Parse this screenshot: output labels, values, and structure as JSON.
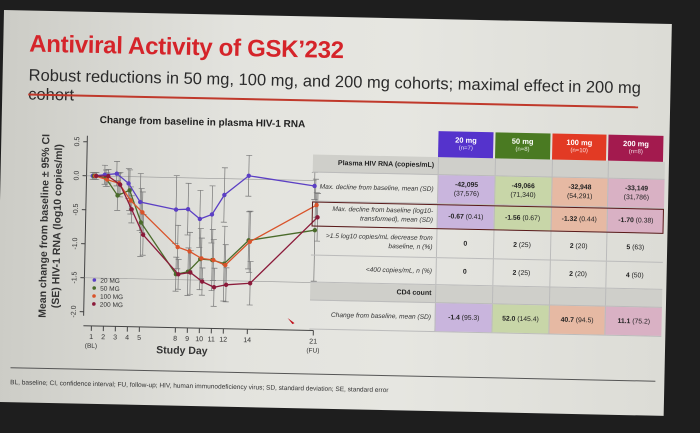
{
  "slide": {
    "title": "Antiviral Activity of GSK’232",
    "subtitle": "Robust reductions in 50 mg, 100 mg, and 200 mg cohorts; maximal effect in 200 mg cohort",
    "footnote": "BL, baseline; CI, confidence interval; FU, follow-up; HIV, human immunodeficiency virus; SD, standard deviation; SE, standard error"
  },
  "chart_data": {
    "type": "line",
    "title": "Change from baseline in plasma HIV-1 RNA",
    "xlabel": "Study Day",
    "ylabel": "Mean change from baseline ± 95% CI (SE) HIV-1 RNA (log10 copies/ml)",
    "ylabel_line1": "Mean change from baseline ± 95% CI",
    "ylabel_line2": "(SE) HIV-1 RNA (log10 copies/ml)",
    "ylim": [
      -2.0,
      0.5
    ],
    "yticks": [
      0.5,
      0.0,
      -0.5,
      -1.0,
      -1.5,
      -2.0
    ],
    "ytick_labels": [
      "0.5",
      "0.0",
      "-0.5",
      "-1.0",
      "-1.5",
      "-2.0"
    ],
    "x_positions": [
      1,
      2,
      3,
      4,
      5,
      8,
      9,
      10,
      11,
      12,
      14,
      21
    ],
    "xtick_labels": [
      "1",
      "2",
      "3",
      "4",
      "5",
      "8",
      "9",
      "10",
      "11",
      "12",
      "14",
      "21"
    ],
    "xtick_sublabels": {
      "1": "(BL)",
      "21": "(FU)"
    },
    "reference_lines": [
      0.0,
      -1.5
    ],
    "legend_position": "bottom-left",
    "series": [
      {
        "name": "20 MG",
        "color": "#5b3fc4",
        "x": [
          1,
          2,
          3,
          4,
          5,
          8,
          9,
          10,
          11,
          12,
          14,
          21
        ],
        "values": [
          0.0,
          0.02,
          0.04,
          -0.1,
          -0.37,
          -0.47,
          -0.46,
          -0.6,
          -0.53,
          -0.24,
          0.05,
          -0.08
        ],
        "err": [
          0.05,
          0.14,
          0.18,
          0.22,
          0.42,
          0.5,
          0.38,
          0.42,
          0.42,
          0.4,
          0.3,
          0.2
        ]
      },
      {
        "name": "50 MG",
        "color": "#4a6b2a",
        "x": [
          1,
          2,
          3,
          4,
          5,
          8,
          9,
          10,
          11,
          12,
          14,
          21
        ],
        "values": [
          0.0,
          -0.03,
          -0.28,
          -0.2,
          -0.67,
          -1.42,
          -1.38,
          -1.19,
          -1.2,
          -1.25,
          -0.9,
          -0.73
        ],
        "err": [
          0.05,
          0.12,
          0.22,
          0.3,
          0.5,
          0.25,
          0.35,
          0.45,
          0.45,
          0.55,
          0.42,
          0.75
        ]
      },
      {
        "name": "100 MG",
        "color": "#d9532a",
        "x": [
          1,
          2,
          3,
          4,
          5,
          8,
          9,
          10,
          11,
          12,
          14,
          21
        ],
        "values": [
          0.0,
          -0.05,
          -0.1,
          -0.35,
          -0.52,
          -1.02,
          -1.08,
          -1.18,
          -1.2,
          -1.27,
          -0.92,
          -0.36
        ],
        "err": [
          0.05,
          0.1,
          0.15,
          0.2,
          0.3,
          0.32,
          0.28,
          0.3,
          0.3,
          0.3,
          0.45,
          0.18
        ]
      },
      {
        "name": "200 MG",
        "color": "#8b1a3a",
        "x": [
          1,
          2,
          3,
          4,
          5,
          8,
          9,
          10,
          11,
          12,
          14,
          21
        ],
        "values": [
          0.0,
          0.0,
          -0.12,
          -0.48,
          -0.85,
          -1.42,
          -1.39,
          -1.52,
          -1.6,
          -1.56,
          -1.53,
          -0.54
        ],
        "err": [
          0.05,
          0.1,
          0.18,
          0.2,
          0.3,
          0.22,
          0.32,
          0.2,
          0.28,
          0.25,
          0.32,
          0.35
        ]
      }
    ]
  },
  "table": {
    "columns": [
      {
        "label": "20 mg",
        "n": "(n=7)",
        "color": "#5533cc",
        "tint": "#c9b5dd"
      },
      {
        "label": "50 mg",
        "n": "(n=8)",
        "color": "#4a7a22",
        "tint": "#c8d6a8"
      },
      {
        "label": "100 mg",
        "n": "(n=10)",
        "color": "#e23a24",
        "tint": "#e6b9a3"
      },
      {
        "label": "200 mg",
        "n": "(n=8)",
        "color": "#a31a4e",
        "tint": "#d9b1c4"
      }
    ],
    "sections": [
      {
        "title": "Plasma HIV RNA (copies/mL)"
      },
      {
        "title": "CD4 count"
      }
    ],
    "rows": [
      {
        "label": "Max. decline from baseline, mean (SD)",
        "cells": [
          [
            "-42,095",
            "(37,576)"
          ],
          [
            "-49,066",
            "(71,340)"
          ],
          [
            "-32,948",
            "(54,291)"
          ],
          [
            "-33,149",
            "(31,786)"
          ]
        ]
      },
      {
        "label": "Max. decline from baseline (log10-transformed), mean (SD)",
        "cells": [
          [
            "-0.67",
            "(0.41)"
          ],
          [
            "-1.56",
            "(0.67)"
          ],
          [
            "-1.32",
            "(0.44)"
          ],
          [
            "-1.70",
            "(0.38)"
          ]
        ]
      },
      {
        "label": ">1.5 log10 copies/mL decrease from baseline, n (%)",
        "cells": [
          [
            "0",
            ""
          ],
          [
            "2",
            "(25)"
          ],
          [
            "2",
            "(20)"
          ],
          [
            "5",
            "(63)"
          ]
        ]
      },
      {
        "label": "<400 copies/mL, n (%)",
        "cells": [
          [
            "0",
            ""
          ],
          [
            "2",
            "(25)"
          ],
          [
            "2",
            "(20)"
          ],
          [
            "4",
            "(50)"
          ]
        ]
      },
      {
        "label": "Change from baseline, mean (SD)",
        "cells": [
          [
            "-1.4",
            "(95.3)"
          ],
          [
            "52.0",
            "(145.4)"
          ],
          [
            "40.7",
            "(94.5)"
          ],
          [
            "11.1",
            "(75.2)"
          ]
        ]
      }
    ]
  }
}
